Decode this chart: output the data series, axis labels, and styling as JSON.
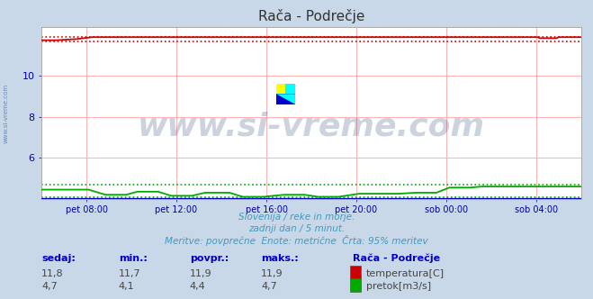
{
  "title": "Rača - Podrečje",
  "background_color": "#c8d8e8",
  "plot_bg_color": "#ffffff",
  "grid_color_h": "#ffb0b0",
  "grid_color_v": "#ffb0b0",
  "x_labels": [
    "pet 08:00",
    "pet 12:00",
    "pet 16:00",
    "pet 20:00",
    "sob 00:00",
    "sob 04:00"
  ],
  "x_ticks_norm": [
    0.0833,
    0.25,
    0.4167,
    0.5833,
    0.75,
    0.9167
  ],
  "ylim": [
    4.0,
    12.4
  ],
  "yticks": [
    6,
    8,
    10
  ],
  "temp_color": "#cc0000",
  "flow_color": "#00aa00",
  "height_color": "#0000cc",
  "subtitle1": "Slovenija / reke in morje.",
  "subtitle2": "zadnji dan / 5 minut.",
  "subtitle3": "Meritve: povprečne  Enote: metrične  Črta: 95% meritev",
  "subtitle_color": "#4499bb",
  "watermark": "www.si-vreme.com",
  "watermark_color": "#1a3a6a",
  "stat_label_color": "#0000cc",
  "stat_value_color": "#444444",
  "legend_title": "Rača - Podrečje",
  "n_points": 288,
  "figsize": [
    6.59,
    3.32
  ],
  "dpi": 100,
  "tick_color": "#0000aa",
  "spine_color": "#aaaaaa"
}
